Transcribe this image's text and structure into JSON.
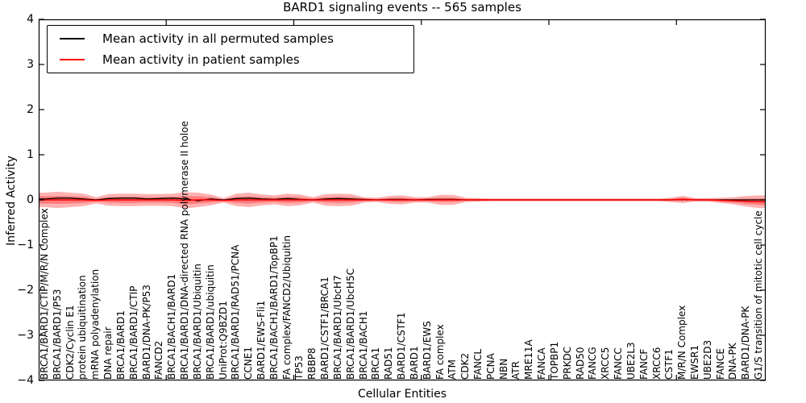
{
  "chart_data": {
    "type": "line",
    "title": "BARD1 signaling events -- 565 samples",
    "xlabel": "Cellular Entities",
    "ylabel": "Inferred Activity",
    "ylim": [
      -4,
      4
    ],
    "yticks": [
      "-4",
      "-3",
      "-2",
      "-1",
      "0",
      "1",
      "2",
      "3",
      "4"
    ],
    "legend_position": "upper left",
    "grid": false,
    "zero_reference_line": "black dotted at y=0",
    "categories": [
      "BRCA1/BARD1/CTIP/M/R/N Complex",
      "BRCA1/BARD1/P53",
      "CDK2/Cyclin E1",
      "protein ubiquitination",
      "mRNA polyadenylation",
      "DNA repair",
      "BRCA1/BARD1",
      "BRCA1/BARD1/CTIP",
      "BARD1/DNA-PK/P53",
      "FANCD2",
      "BRCA1/BACH1/BARD1",
      "BRCA1/BARD1/DNA-directed RNA polymerase II holoe",
      "BRCA1/BARD1/Ubiquitin",
      "BRCA1/BARD1/ubiquitin",
      "UniProt:Q9BZD1",
      "BRCA1/BARD1/RAD51/PCNA",
      "CCNE1",
      "BARD1/EWS-Fli1",
      "BRCA1/BACH1/BARD1/TopBP1",
      "FA complex/FANCD2/Ubiquitin",
      "TP53",
      "RBBP8",
      "BARD1/CSTF1/BRCA1",
      "BRCA1/BARD1/UbcH7",
      "BRCA1/BARD1/UbcH5C",
      "BRCA1/BACH1",
      "BRCA1",
      "RAD51",
      "BARD1/CSTF1",
      "BARD1",
      "BARD1/EWS",
      "FA complex",
      "ATM",
      "CDK2",
      "FANCL",
      "PCNA",
      "NBN",
      "ATR",
      "MRE11A",
      "FANCA",
      "TOPBP1",
      "PRKDC",
      "RAD50",
      "FANCG",
      "XRCC5",
      "FANCC",
      "UBE2L3",
      "FANCF",
      "XRCC6",
      "CSTF1",
      "M/R/N Complex",
      "EWSR1",
      "UBE2D3",
      "FANCE",
      "DNA-PK",
      "BARD1/DNA-PK",
      "G1/S transition of mitotic cell cycle"
    ],
    "series": [
      {
        "name": "Mean activity in all permuted samples",
        "color": "#000000",
        "values": [
          0.02,
          0.04,
          0.04,
          0.02,
          0.0,
          0.03,
          0.04,
          0.04,
          0.02,
          0.03,
          0.04,
          0.02,
          -0.02,
          0.02,
          0.0,
          0.03,
          0.04,
          0.02,
          0.01,
          0.03,
          0.01,
          0.0,
          0.02,
          0.03,
          0.02,
          0.01,
          0.0,
          0.01,
          0.01,
          0.0,
          0.01,
          0.01,
          0.01,
          0.0,
          0.0,
          0.0,
          0.0,
          0.0,
          0.0,
          0.0,
          0.0,
          0.0,
          0.0,
          0.0,
          0.0,
          0.0,
          0.0,
          0.0,
          0.0,
          0.0,
          0.01,
          0.0,
          0.0,
          0.0,
          0.0,
          0.0,
          0.0
        ]
      },
      {
        "name": "Mean activity in patient samples",
        "color": "#ff0000",
        "values": [
          0.0,
          0.0,
          0.0,
          0.0,
          -0.01,
          0.0,
          0.0,
          0.0,
          0.0,
          0.0,
          0.0,
          -0.01,
          0.0,
          0.0,
          -0.01,
          0.0,
          0.0,
          0.0,
          0.0,
          0.0,
          0.0,
          0.0,
          0.0,
          0.0,
          0.0,
          0.0,
          0.0,
          0.0,
          0.0,
          0.0,
          0.0,
          0.0,
          0.0,
          0.0,
          0.0,
          0.0,
          0.0,
          0.0,
          0.0,
          0.0,
          0.0,
          0.0,
          0.0,
          0.0,
          0.0,
          0.0,
          0.0,
          0.0,
          0.0,
          0.0,
          0.01,
          0.0,
          0.0,
          -0.01,
          -0.02,
          -0.03,
          -0.04
        ]
      }
    ],
    "band": {
      "name": "patient sample activity spread (shaded)",
      "color": "#ff0000",
      "outer_halfwidth": [
        0.16,
        0.18,
        0.16,
        0.14,
        0.07,
        0.13,
        0.14,
        0.14,
        0.13,
        0.13,
        0.14,
        0.18,
        0.16,
        0.12,
        0.05,
        0.14,
        0.16,
        0.12,
        0.1,
        0.14,
        0.12,
        0.06,
        0.13,
        0.14,
        0.13,
        0.06,
        0.05,
        0.09,
        0.1,
        0.06,
        0.06,
        0.11,
        0.11,
        0.05,
        0.04,
        0.03,
        0.03,
        0.03,
        0.03,
        0.03,
        0.03,
        0.03,
        0.03,
        0.03,
        0.03,
        0.03,
        0.03,
        0.03,
        0.03,
        0.05,
        0.08,
        0.04,
        0.04,
        0.06,
        0.08,
        0.12,
        0.14
      ],
      "inner_halfwidth": [
        0.08,
        0.09,
        0.08,
        0.07,
        0.03,
        0.06,
        0.07,
        0.07,
        0.06,
        0.06,
        0.07,
        0.09,
        0.08,
        0.06,
        0.02,
        0.07,
        0.08,
        0.06,
        0.05,
        0.07,
        0.06,
        0.03,
        0.06,
        0.07,
        0.06,
        0.03,
        0.02,
        0.04,
        0.05,
        0.03,
        0.03,
        0.05,
        0.05,
        0.02,
        0.02,
        0.015,
        0.015,
        0.015,
        0.015,
        0.015,
        0.015,
        0.015,
        0.015,
        0.015,
        0.015,
        0.015,
        0.015,
        0.015,
        0.015,
        0.02,
        0.04,
        0.02,
        0.02,
        0.03,
        0.04,
        0.06,
        0.07
      ]
    }
  }
}
